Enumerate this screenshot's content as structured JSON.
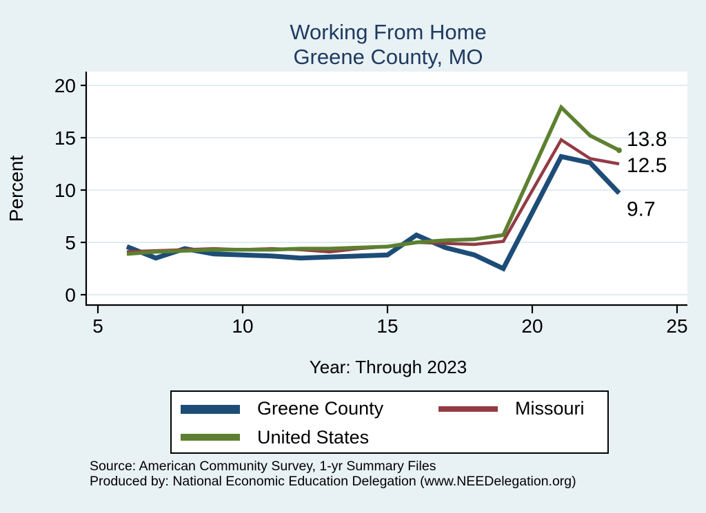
{
  "title": {
    "line1": "Working From Home",
    "line2": "Greene County, MO"
  },
  "colors": {
    "background": "#e8f1f4",
    "title_text": "#1f3a60",
    "plot_background": "#ffffff",
    "gridline": "#e1ecf0",
    "axis": "#000000",
    "greene_county": "#1d4c77",
    "missouri": "#933b43",
    "united_states": "#5d8030"
  },
  "chart_data": {
    "type": "line",
    "title": "Working From Home — Greene County, MO",
    "xlabel": "Year: Through 2023",
    "ylabel": "Percent",
    "xlim": [
      5,
      25
    ],
    "ylim": [
      0,
      20
    ],
    "grid": "horizontal",
    "x_ticks": [
      5,
      10,
      15,
      20,
      25
    ],
    "y_ticks": [
      0,
      5,
      10,
      15,
      20
    ],
    "x": [
      6,
      7,
      8,
      9,
      10,
      11,
      12,
      13,
      14,
      15,
      16,
      17,
      18,
      19,
      21,
      22,
      23
    ],
    "series": [
      {
        "name": "Greene County",
        "color": "#1d4c77",
        "line_width": 7,
        "end_label": "9.7",
        "end_marker": false,
        "values": [
          4.6,
          3.5,
          4.4,
          3.9,
          3.8,
          3.7,
          3.5,
          3.6,
          3.7,
          3.8,
          5.7,
          4.5,
          3.8,
          2.5,
          13.2,
          12.6,
          9.7
        ]
      },
      {
        "name": "Missouri",
        "color": "#933b43",
        "line_width": 4.5,
        "end_label": "12.5",
        "end_marker": false,
        "values": [
          4.1,
          4.2,
          4.3,
          4.4,
          4.3,
          4.4,
          4.3,
          4.1,
          4.4,
          4.6,
          5.0,
          4.9,
          4.8,
          5.1,
          14.8,
          13.0,
          12.5
        ]
      },
      {
        "name": "United States",
        "color": "#5d8030",
        "line_width": 5.5,
        "end_label": "13.8",
        "end_marker": true,
        "values": [
          3.9,
          4.1,
          4.2,
          4.3,
          4.3,
          4.3,
          4.4,
          4.4,
          4.5,
          4.6,
          5.0,
          5.2,
          5.3,
          5.7,
          17.9,
          15.2,
          13.8
        ]
      }
    ],
    "legend_position": "bottom"
  },
  "legend": {
    "items": [
      {
        "label": "Greene County",
        "color": "#1d4c77",
        "thickness": 13
      },
      {
        "label": "Missouri",
        "color": "#933b43",
        "thickness": 8
      },
      {
        "label": "United States",
        "color": "#5d8030",
        "thickness": 10
      }
    ]
  },
  "footer": {
    "line1": "Source: American Community Survey, 1-yr Summary Files",
    "line2": "Produced by: National Economic Education Delegation (www.NEEDelegation.org)"
  }
}
